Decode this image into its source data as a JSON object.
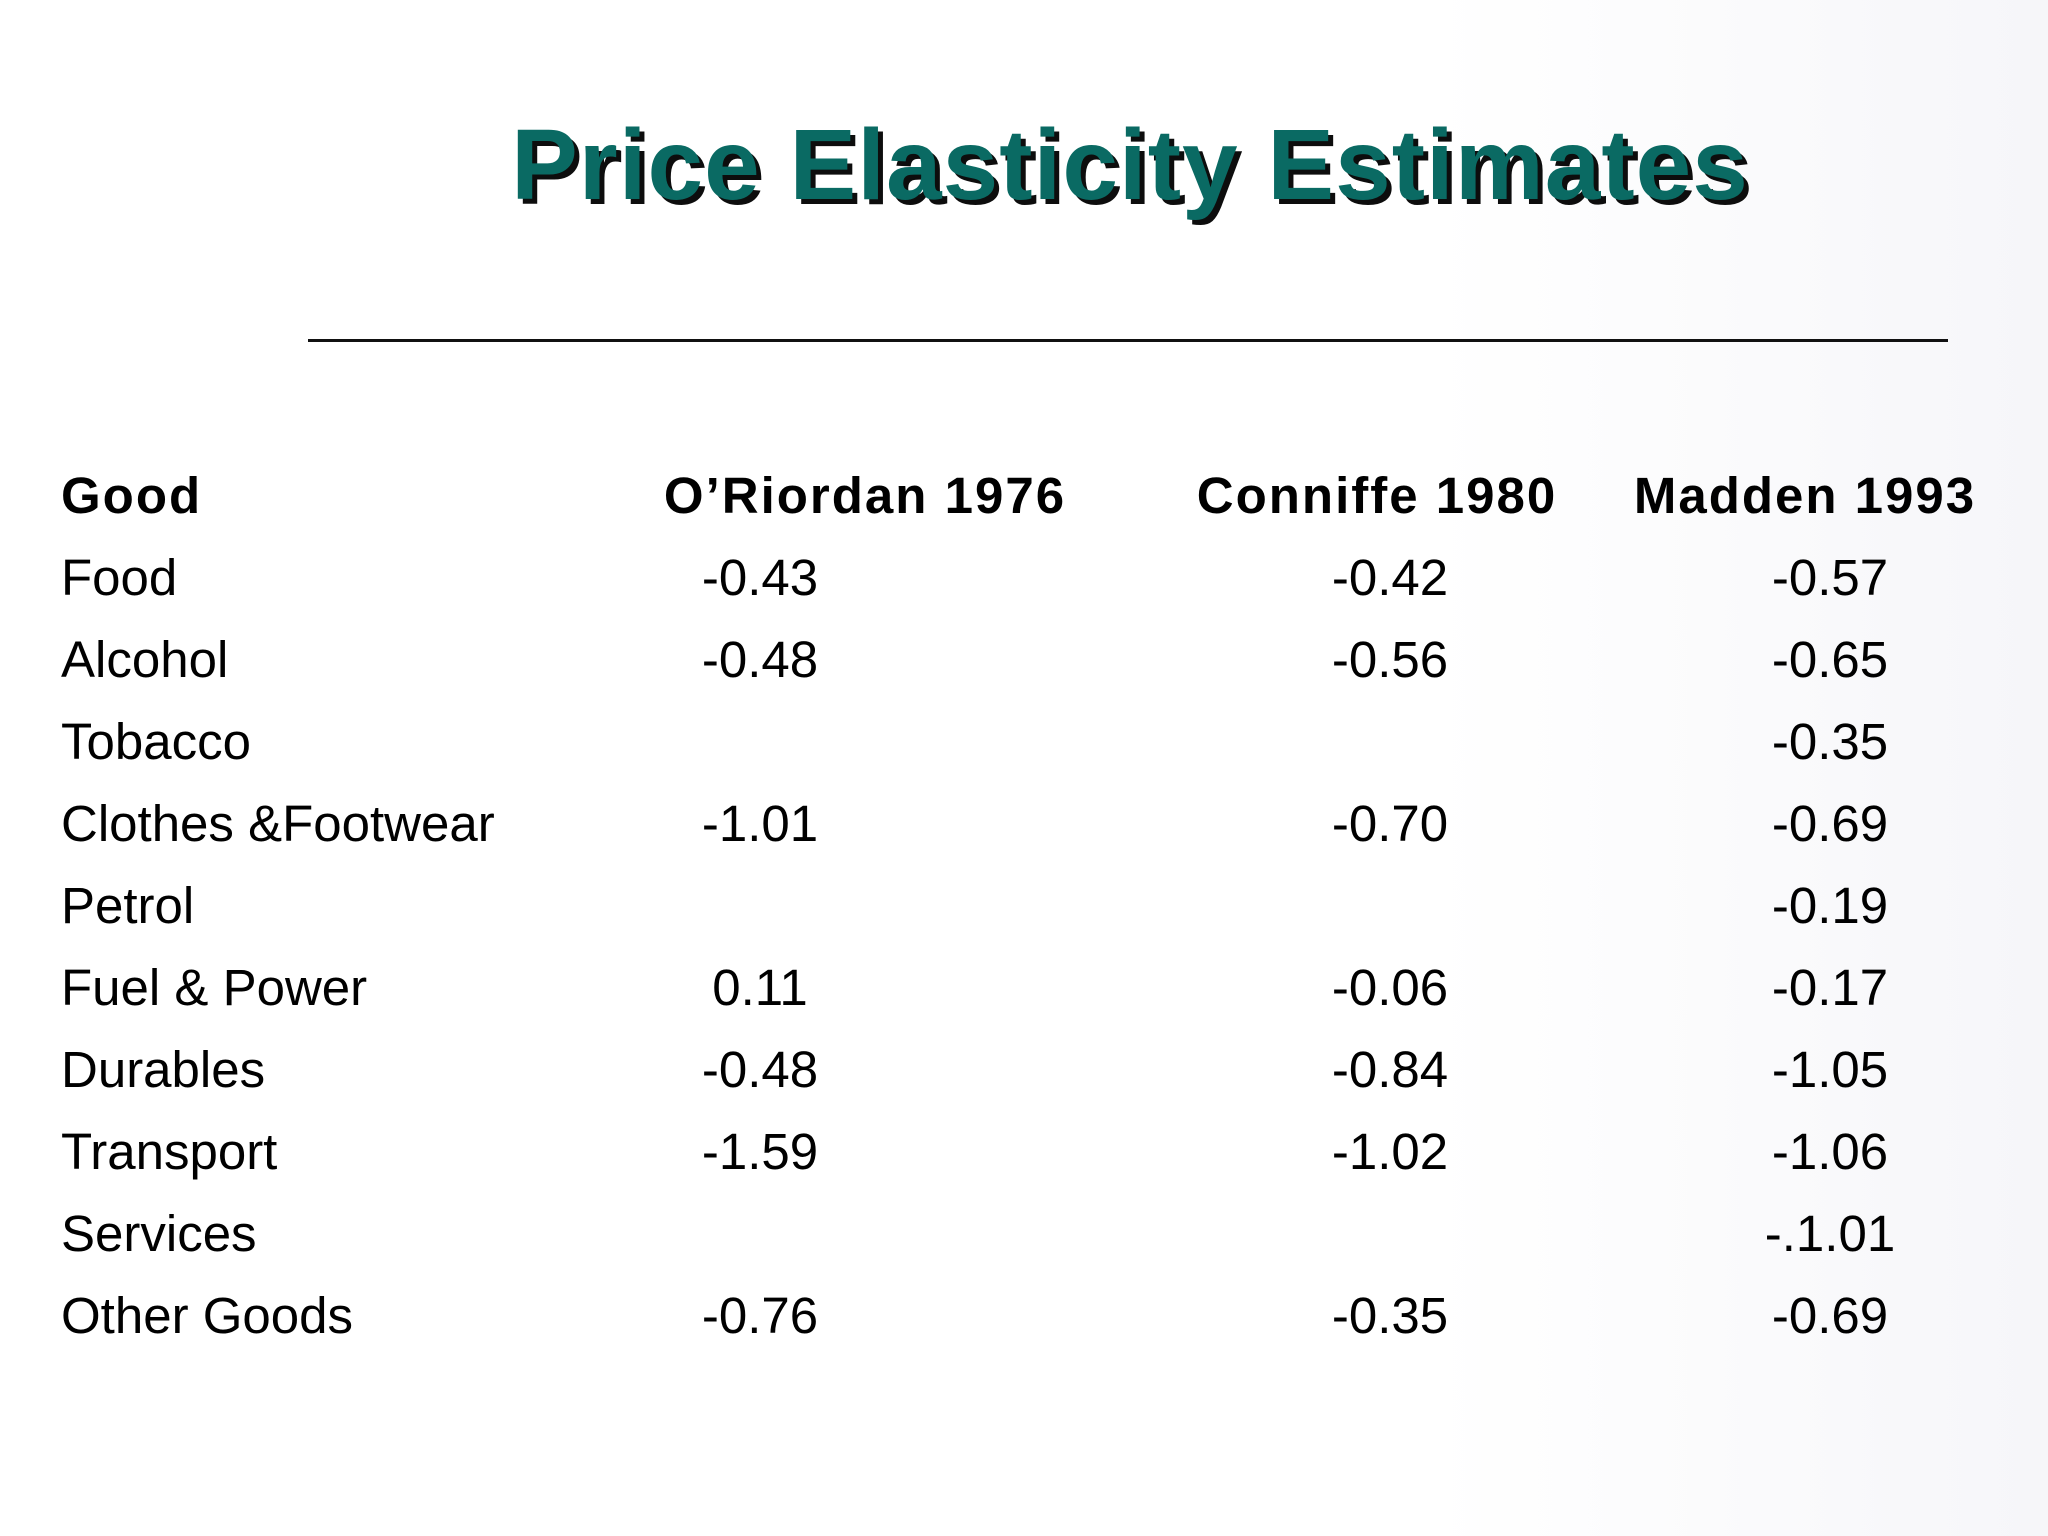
{
  "slide": {
    "title": "Price Elasticity Estimates"
  },
  "table": {
    "headers": {
      "good": "Good",
      "oriordan": "O’Riordan 1976",
      "conniffe": "Conniffe 1980",
      "madden": "Madden 1993"
    },
    "rows": [
      {
        "good": "Food",
        "oriordan": "-0.43",
        "conniffe": "-0.42",
        "madden": "-0.57"
      },
      {
        "good": "Alcohol",
        "oriordan": "-0.48",
        "conniffe": "-0.56",
        "madden": "-0.65"
      },
      {
        "good": "Tobacco",
        "oriordan": "",
        "conniffe": "",
        "madden": "-0.35"
      },
      {
        "good": "Clothes &Footwear",
        "oriordan": "-1.01",
        "conniffe": "-0.70",
        "madden": "-0.69"
      },
      {
        "good": "Petrol",
        "oriordan": "",
        "conniffe": "",
        "madden": "-0.19"
      },
      {
        "good": "Fuel & Power",
        "oriordan": "0.11",
        "conniffe": "-0.06",
        "madden": "-0.17"
      },
      {
        "good": "Durables",
        "oriordan": "-0.48",
        "conniffe": "-0.84",
        "madden": "-1.05"
      },
      {
        "good": "Transport",
        "oriordan": "-1.59",
        "conniffe": "-1.02",
        "madden": "-1.06"
      },
      {
        "good": "Services",
        "oriordan": "",
        "conniffe": "",
        "madden": "-.1.01"
      },
      {
        "good": "Other Goods",
        "oriordan": "-0.76",
        "conniffe": "-0.35",
        "madden": "-0.69"
      }
    ]
  },
  "colors": {
    "title": "#0a6a63",
    "title_shadow": "#0d0d0d",
    "text": "#000000",
    "rule": "#111111"
  }
}
